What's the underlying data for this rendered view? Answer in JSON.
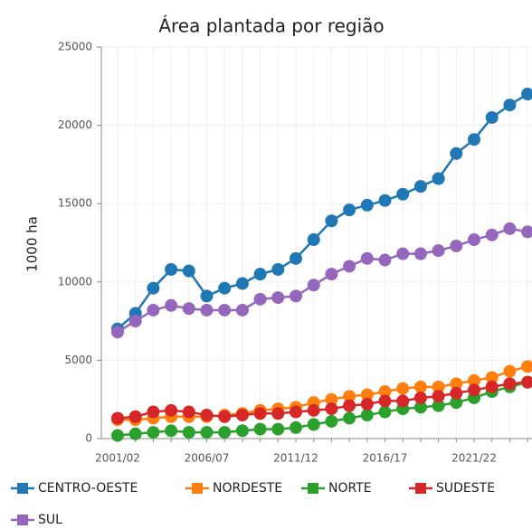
{
  "chart_data": {
    "type": "line",
    "title": "Área plantada por região",
    "y_label": "1000 ha",
    "categories": [
      "2001/02",
      null,
      null,
      null,
      null,
      "2006/07",
      null,
      null,
      null,
      null,
      "2011/12",
      null,
      null,
      null,
      null,
      "2016/17",
      null,
      null,
      null,
      null,
      "2021/22",
      null,
      null,
      null
    ],
    "series": [
      {
        "name": "CENTRO-OESTE",
        "color": "#1f77b4",
        "values": [
          7000,
          8000,
          9600,
          10800,
          10700,
          9100,
          9600,
          9900,
          10500,
          10800,
          11500,
          12700,
          13900,
          14600,
          14900,
          15200,
          15600,
          16100,
          16600,
          18200,
          19100,
          20500,
          21300,
          22000
        ]
      },
      {
        "name": "NORDESTE",
        "color": "#ff7f0e",
        "values": [
          1200,
          1200,
          1300,
          1400,
          1400,
          1400,
          1500,
          1600,
          1800,
          1900,
          2000,
          2300,
          2500,
          2700,
          2800,
          3000,
          3200,
          3300,
          3300,
          3500,
          3700,
          3900,
          4300,
          4600
        ]
      },
      {
        "name": "NORTE",
        "color": "#2ca02c",
        "values": [
          200,
          300,
          400,
          500,
          400,
          400,
          400,
          500,
          600,
          600,
          700,
          900,
          1100,
          1300,
          1500,
          1700,
          1900,
          2000,
          2100,
          2300,
          2600,
          3000,
          3300,
          3600
        ]
      },
      {
        "name": "SUDESTE",
        "color": "#d62728",
        "values": [
          1300,
          1400,
          1700,
          1800,
          1700,
          1500,
          1400,
          1500,
          1600,
          1600,
          1700,
          1800,
          1900,
          2100,
          2200,
          2400,
          2400,
          2600,
          2700,
          2900,
          3100,
          3300,
          3500,
          3600
        ]
      },
      {
        "name": "SUL",
        "color": "#9467bd",
        "values": [
          6800,
          7500,
          8200,
          8500,
          8300,
          8200,
          8200,
          8200,
          8900,
          9000,
          9100,
          9800,
          10500,
          11000,
          11500,
          11400,
          11800,
          11800,
          12000,
          12300,
          12700,
          13000,
          13400,
          13200
        ]
      }
    ],
    "ylim": [
      0,
      25000
    ],
    "yticks": [
      0,
      5000,
      10000,
      15000,
      20000,
      25000
    ],
    "grid": true
  }
}
